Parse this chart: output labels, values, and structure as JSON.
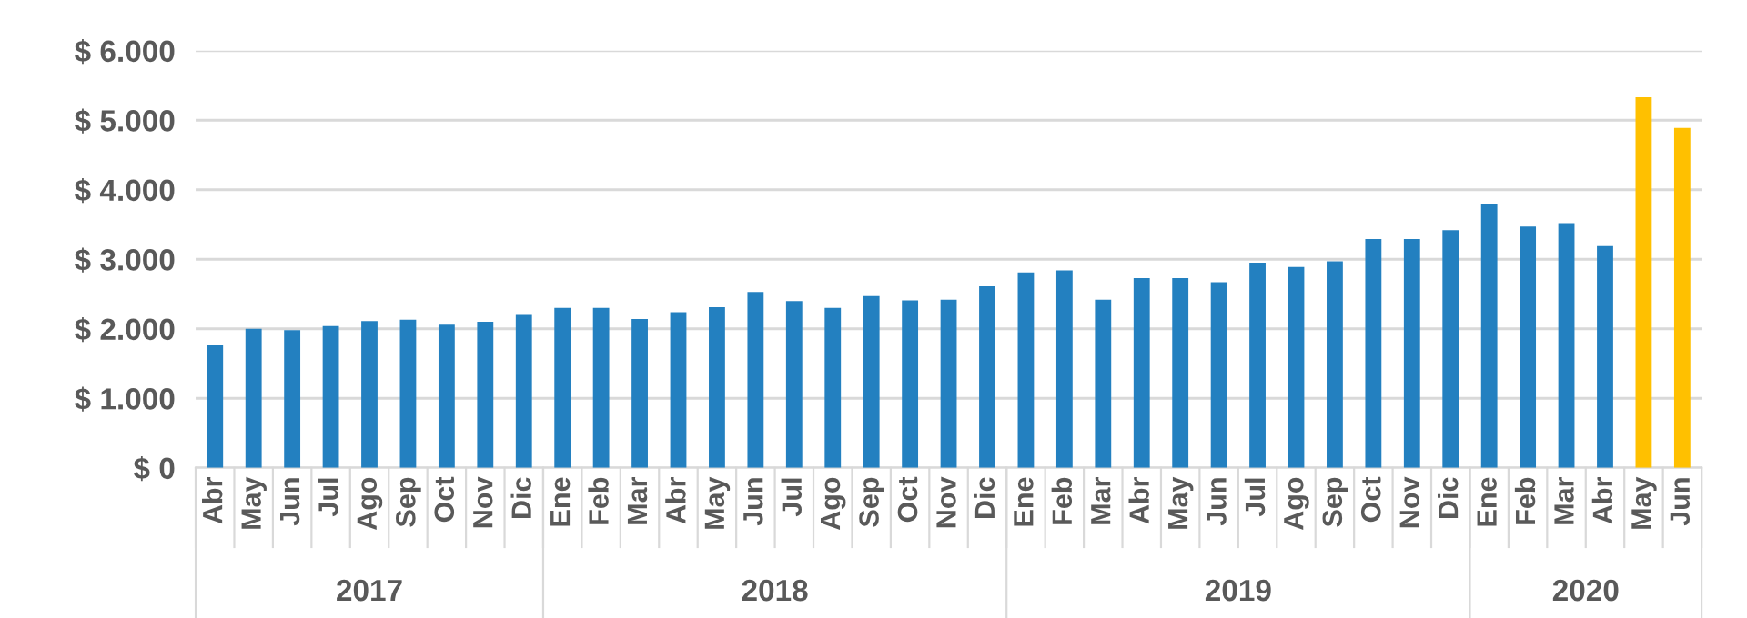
{
  "chart_data": {
    "type": "bar",
    "categories": [
      "Abr",
      "May",
      "Jun",
      "Jul",
      "Ago",
      "Sep",
      "Oct",
      "Nov",
      "Dic",
      "Ene",
      "Feb",
      "Mar",
      "Abr",
      "May",
      "Jun",
      "Jul",
      "Ago",
      "Sep",
      "Oct",
      "Nov",
      "Dic",
      "Ene",
      "Feb",
      "Mar",
      "Abr",
      "May",
      "Jun",
      "Jul",
      "Ago",
      "Sep",
      "Oct",
      "Nov",
      "Dic",
      "Ene",
      "Feb",
      "Mar",
      "Abr",
      "May",
      "Jun"
    ],
    "values": [
      1760,
      2000,
      1980,
      2040,
      2110,
      2130,
      2060,
      2100,
      2200,
      2300,
      2300,
      2140,
      2240,
      2310,
      2530,
      2400,
      2300,
      2470,
      2410,
      2420,
      2610,
      2810,
      2840,
      2420,
      2730,
      2730,
      2670,
      2950,
      2890,
      2970,
      3290,
      3290,
      3420,
      3800,
      3470,
      3520,
      3190,
      5330,
      4890
    ],
    "colors": [
      "#2380c0",
      "#2380c0",
      "#2380c0",
      "#2380c0",
      "#2380c0",
      "#2380c0",
      "#2380c0",
      "#2380c0",
      "#2380c0",
      "#2380c0",
      "#2380c0",
      "#2380c0",
      "#2380c0",
      "#2380c0",
      "#2380c0",
      "#2380c0",
      "#2380c0",
      "#2380c0",
      "#2380c0",
      "#2380c0",
      "#2380c0",
      "#2380c0",
      "#2380c0",
      "#2380c0",
      "#2380c0",
      "#2380c0",
      "#2380c0",
      "#2380c0",
      "#2380c0",
      "#2380c0",
      "#2380c0",
      "#2380c0",
      "#2380c0",
      "#2380c0",
      "#2380c0",
      "#2380c0",
      "#2380c0",
      "#ffc000",
      "#ffc000"
    ],
    "ylim": [
      0,
      6000
    ],
    "yticks": [
      {
        "value": 0,
        "label": "$ 0"
      },
      {
        "value": 1000,
        "label": "$ 1.000"
      },
      {
        "value": 2000,
        "label": "$ 2.000"
      },
      {
        "value": 3000,
        "label": "$ 3.000"
      },
      {
        "value": 4000,
        "label": "$ 4.000"
      },
      {
        "value": 5000,
        "label": "$ 5.000"
      },
      {
        "value": 6000,
        "label": "$ 6.000"
      }
    ],
    "grid": "y",
    "annotations": [
      "2017",
      "2018",
      "2019",
      "2020"
    ]
  }
}
